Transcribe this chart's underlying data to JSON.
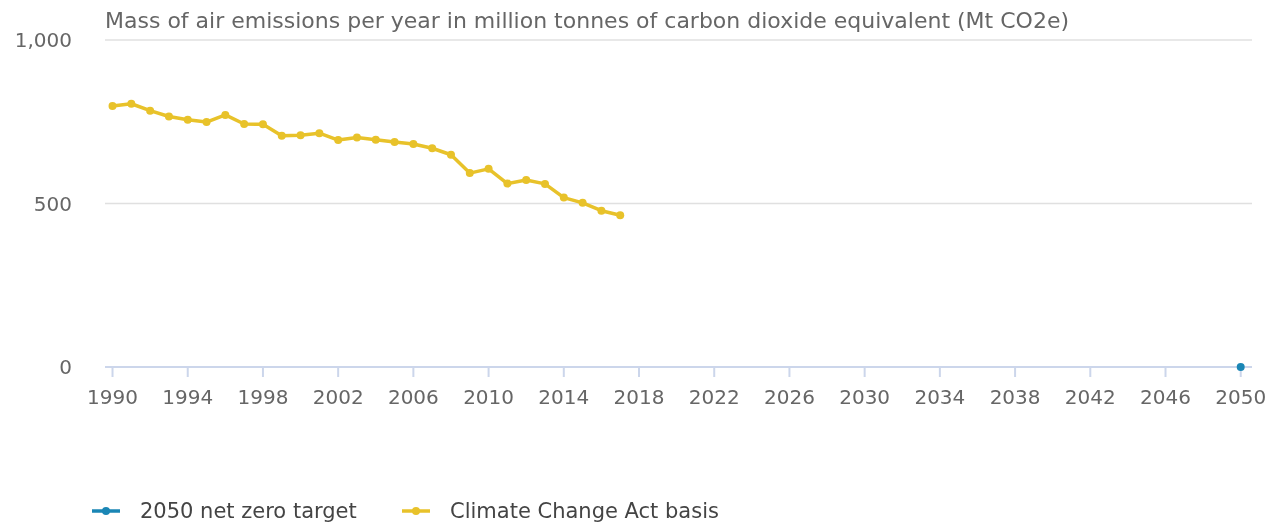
{
  "chart_data": {
    "type": "line",
    "title": "Mass of air emissions per year in million tonnes of carbon dioxide equivalent (Mt CO2e)",
    "xlim": [
      1989.6,
      2050.6
    ],
    "xticks": [
      1990,
      1994,
      1998,
      2002,
      2006,
      2010,
      2014,
      2018,
      2022,
      2026,
      2030,
      2034,
      2038,
      2042,
      2046,
      2050
    ],
    "ylim": [
      0,
      1000
    ],
    "yticks": [
      0,
      {
        "value": 500,
        "label": "500"
      },
      {
        "value": 1000,
        "label": "1,000"
      }
    ],
    "grid": "y",
    "legend": "bottom left",
    "marker": "circle",
    "series": [
      {
        "name": "2050 net zero target",
        "color": "#1a86b5",
        "x": [
          2050
        ],
        "values": [
          0
        ]
      },
      {
        "name": "Climate Change Act basis",
        "color": "#e8c22a",
        "x": [
          1990,
          1991,
          1992,
          1993,
          1994,
          1995,
          1996,
          1997,
          1998,
          1999,
          2000,
          2001,
          2002,
          2003,
          2004,
          2005,
          2006,
          2007,
          2008,
          2009,
          2010,
          2011,
          2012,
          2013,
          2014,
          2015,
          2016,
          2017
        ],
        "values": [
          798,
          805,
          784,
          766,
          756,
          749,
          771,
          743,
          742,
          707,
          709,
          715,
          694,
          702,
          695,
          688,
          682,
          669,
          649,
          593,
          606,
          561,
          572,
          560,
          518,
          502,
          478,
          464
        ]
      }
    ]
  }
}
